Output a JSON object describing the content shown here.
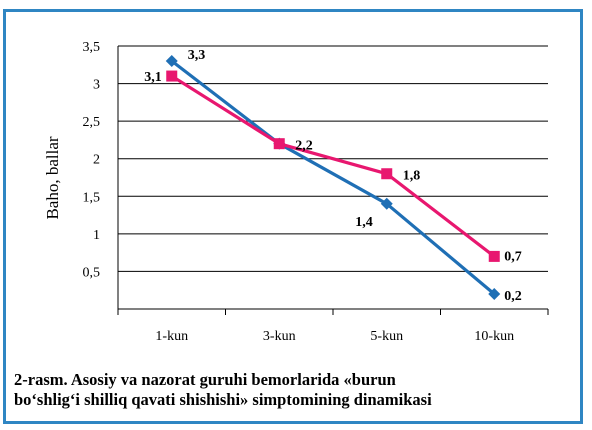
{
  "chart_data": {
    "type": "line",
    "categories": [
      "1-kun",
      "3-kun",
      "5-kun",
      "10-kun"
    ],
    "series": [
      {
        "color": "#1f6fb5",
        "marker": "diamond",
        "values": [
          3.3,
          2.2,
          1.4,
          0.2
        ],
        "labels": [
          "3,3",
          "2,2",
          "1,4",
          "0,2"
        ]
      },
      {
        "color": "#e8176f",
        "marker": "square",
        "values": [
          3.1,
          2.2,
          1.8,
          0.7
        ],
        "labels": [
          "3,1",
          "2,2",
          "1,8",
          "0,7"
        ]
      }
    ],
    "ylabel": "Baho, ballar",
    "ylim": [
      0,
      3.5
    ],
    "yticks": [
      0.5,
      1,
      1.5,
      2,
      2.5,
      3,
      3.5
    ],
    "ytick_labels": [
      "0,5",
      "1",
      "1,5",
      "2",
      "2,5",
      "3",
      "3,5"
    ],
    "grid": true,
    "legend": "none"
  },
  "caption": {
    "line1": "2-rasm. Asosiy va nazorat guruhi bemorlarida «burun",
    "line2": "bo‘shlig‘i shilliq qavati shishishi» simptomining dinamikasi"
  },
  "colors": {
    "frame_border": "#2f86c3",
    "grid": "#000000"
  }
}
